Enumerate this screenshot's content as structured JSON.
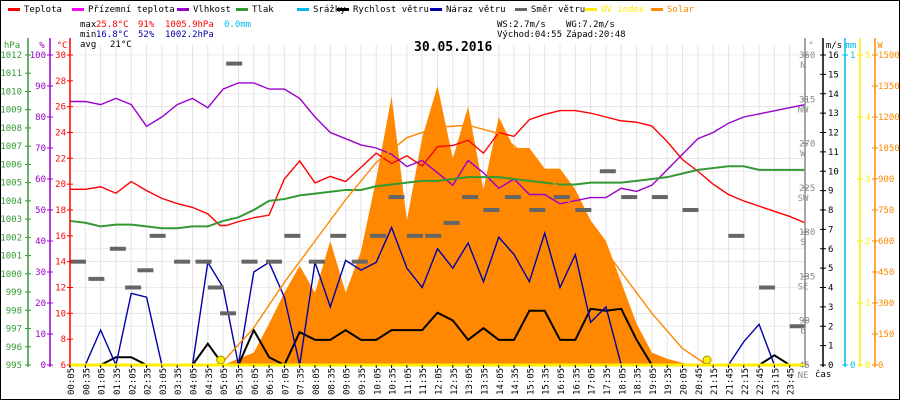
{
  "legend": [
    {
      "label": "Teplota",
      "color": "#ff0000"
    },
    {
      "label": "Přízemní teplota",
      "color": "#ff00ff"
    },
    {
      "label": "Vlhkost",
      "color": "#9900cc"
    },
    {
      "label": "Tlak",
      "color": "#339933"
    },
    {
      "label": "Srážky",
      "color": "#00bbee"
    },
    {
      "label": "Rychlost větru",
      "color": "#000000"
    },
    {
      "label": "Náraz větru",
      "color": "#0000aa"
    },
    {
      "label": "Směr větru",
      "color": "#666666"
    },
    {
      "label": "UV index",
      "color": "#ffee00"
    },
    {
      "label": "Solar",
      "color": "#ff8800"
    }
  ],
  "stats": {
    "max_label": "max",
    "min_label": "min",
    "avg_label": "avg",
    "max_temp": "25.8°C",
    "max_hum": "91%",
    "max_press": "1005.9hPa",
    "rain": "0.0mm",
    "min_temp": "16.8°C",
    "min_hum": "52%",
    "min_press": "1002.2hPa",
    "avg_temp": "21°C",
    "ws": "WS:2.7m/s",
    "wg": "WG:7.2m/s",
    "sunrise": "Východ:04:55",
    "sunset": "Západ:20:48"
  },
  "title": "30.05.2016",
  "time_axis_label": "čas",
  "chart_data": {
    "type": "line",
    "title": "30.05.2016",
    "xlabel": "čas",
    "x_ticks": [
      "00:05",
      "00:35",
      "01:05",
      "01:35",
      "02:05",
      "02:35",
      "03:05",
      "03:35",
      "04:05",
      "04:35",
      "05:05",
      "05:35",
      "06:05",
      "06:35",
      "07:05",
      "07:35",
      "08:05",
      "08:35",
      "09:05",
      "09:35",
      "10:05",
      "10:35",
      "11:05",
      "11:35",
      "12:05",
      "12:35",
      "13:05",
      "13:35",
      "14:05",
      "14:35",
      "15:05",
      "15:35",
      "16:05",
      "16:35",
      "17:05",
      "17:35",
      "18:05",
      "18:35",
      "19:05",
      "19:35",
      "20:05",
      "20:45",
      "21:15",
      "21:45",
      "22:15",
      "22:45",
      "23:15",
      "23:45"
    ],
    "axes": {
      "pressure": {
        "unit": "hPa",
        "range": [
          995,
          1012
        ],
        "ticks": [
          "1012",
          "1011",
          "1010",
          "1009",
          "1008",
          "1007",
          "1006",
          "1005",
          "1004",
          "1003",
          "1002",
          "1001",
          "1000",
          "999",
          "998",
          "997",
          "996",
          "995"
        ]
      },
      "humidity": {
        "unit": "%",
        "range": [
          0,
          100
        ],
        "ticks": [
          "100",
          "90",
          "80",
          "70",
          "60",
          "50",
          "40",
          "30",
          "20",
          "10",
          "0"
        ]
      },
      "temperature": {
        "unit": "°C",
        "range": [
          6,
          30
        ],
        "ticks": [
          "30",
          "28",
          "26",
          "24",
          "22",
          "20",
          "18",
          "16",
          "14",
          "12",
          "10",
          "8",
          "6"
        ]
      },
      "direction": {
        "unit": "°",
        "range": [
          0,
          360
        ],
        "ticks": [
          {
            "v": "360",
            "d": "N"
          },
          {
            "v": "315",
            "d": "NW"
          },
          {
            "v": "270",
            "d": "W"
          },
          {
            "v": "225",
            "d": "SW"
          },
          {
            "v": "180",
            "d": "S"
          },
          {
            "v": "135",
            "d": "SE"
          },
          {
            "v": "90",
            "d": "E"
          },
          {
            "v": "45",
            "d": "NE"
          }
        ]
      },
      "wind": {
        "unit": "m/s",
        "range": [
          0,
          16
        ],
        "ticks": [
          "16",
          "15",
          "14",
          "13",
          "12",
          "11",
          "10",
          "9",
          "8",
          "7",
          "6",
          "5",
          "4",
          "3",
          "2",
          "1",
          "0"
        ]
      },
      "rain": {
        "unit": "mm",
        "range": [
          0,
          1
        ],
        "ticks": [
          "1",
          "0"
        ]
      },
      "uv": {
        "unit": "",
        "range": [
          0,
          5
        ],
        "ticks": [
          "5",
          "4",
          "3",
          "2",
          "1",
          "0"
        ]
      },
      "solar": {
        "unit": "W",
        "range": [
          0,
          1500
        ],
        "ticks": [
          "1500",
          "1350",
          "1200",
          "1050",
          "900",
          "750",
          "600",
          "450",
          "300",
          "150",
          "0"
        ]
      }
    },
    "series": [
      {
        "name": "Teplota",
        "axis": "temperature",
        "color": "#ff0000",
        "x": [
          0,
          0.5,
          1,
          1.5,
          2,
          2.5,
          3,
          3.5,
          4,
          4.5,
          4.9,
          5.1,
          5.5,
          6,
          6.5,
          7,
          7.5,
          8,
          8.5,
          9,
          9.5,
          10,
          10.5,
          11,
          11.5,
          12,
          12.5,
          13,
          13.5,
          14,
          14.5,
          15,
          15.5,
          16,
          16.5,
          17,
          17.5,
          18,
          18.5,
          19,
          19.5,
          20,
          20.5,
          21,
          21.5,
          22,
          22.5,
          23,
          23.5,
          24
        ],
        "values": [
          19.6,
          19.6,
          19.8,
          19.3,
          20.2,
          19.5,
          18.9,
          18.5,
          18.2,
          17.7,
          16.8,
          16.8,
          17.1,
          17.4,
          17.6,
          20.4,
          21.8,
          20.1,
          20.6,
          20.2,
          21.3,
          22.4,
          21.6,
          22.2,
          21.4,
          22.9,
          23.0,
          23.4,
          22.4,
          24.0,
          23.7,
          25.0,
          25.4,
          25.7,
          25.7,
          25.5,
          25.2,
          24.9,
          24.8,
          24.5,
          23.3,
          21.9,
          21.0,
          20.0,
          19.2,
          18.7,
          18.3,
          17.9,
          17.5,
          17.0
        ]
      },
      {
        "name": "Vlhkost",
        "axis": "humidity",
        "color": "#9900cc",
        "x": [
          0,
          0.5,
          1,
          1.5,
          2,
          2.5,
          3,
          3.5,
          4,
          4.5,
          5,
          5.5,
          6,
          6.5,
          7,
          7.5,
          8,
          8.5,
          9,
          9.5,
          10,
          10.5,
          11,
          11.5,
          12,
          12.5,
          13,
          13.5,
          14,
          14.5,
          15,
          15.5,
          16,
          16.5,
          17,
          17.5,
          18,
          18.5,
          19,
          19.5,
          20,
          20.5,
          21,
          21.5,
          22,
          22.5,
          23,
          23.5,
          24
        ],
        "values": [
          85,
          85,
          84,
          86,
          84,
          77,
          80,
          84,
          86,
          83,
          89,
          91,
          91,
          89,
          89,
          86,
          80,
          75,
          73,
          71,
          70,
          68,
          64,
          66,
          62,
          58,
          66,
          62,
          57,
          60,
          55,
          55,
          52,
          53,
          54,
          54,
          57,
          56,
          58,
          63,
          68,
          73,
          75,
          78,
          80,
          81,
          82,
          83,
          84
        ]
      },
      {
        "name": "Tlak",
        "axis": "pressure",
        "color": "#339933",
        "x": [
          0,
          0.5,
          1,
          1.5,
          2,
          2.5,
          3,
          3.5,
          4,
          4.5,
          5,
          5.5,
          6,
          6.5,
          7,
          7.5,
          8,
          8.5,
          9,
          9.5,
          10,
          10.5,
          11,
          11.5,
          12,
          12.5,
          13,
          13.5,
          14,
          14.5,
          15,
          15.5,
          16,
          16.5,
          17,
          17.5,
          18,
          18.5,
          19,
          19.5,
          20,
          20.5,
          21,
          21.5,
          22,
          22.5,
          23,
          23.5,
          24
        ],
        "values": [
          1002.9,
          1002.8,
          1002.6,
          1002.7,
          1002.7,
          1002.6,
          1002.5,
          1002.5,
          1002.6,
          1002.6,
          1002.9,
          1003.1,
          1003.5,
          1004.0,
          1004.1,
          1004.3,
          1004.4,
          1004.5,
          1004.6,
          1004.6,
          1004.8,
          1004.9,
          1005.0,
          1005.1,
          1005.1,
          1005.2,
          1005.3,
          1005.3,
          1005.3,
          1005.2,
          1005.1,
          1005.0,
          1004.9,
          1004.9,
          1005.0,
          1005.0,
          1005.0,
          1005.1,
          1005.2,
          1005.3,
          1005.5,
          1005.7,
          1005.8,
          1005.9,
          1005.9,
          1005.7,
          1005.7,
          1005.7,
          1005.7
        ]
      },
      {
        "name": "Rychlost větru",
        "axis": "wind",
        "color": "#000000",
        "x": [
          0,
          0.5,
          1,
          1.5,
          2,
          2.5,
          3,
          3.5,
          4,
          4.5,
          5,
          5.5,
          6,
          6.5,
          7,
          7.5,
          8,
          8.5,
          9,
          9.5,
          10,
          10.5,
          11,
          11.5,
          12,
          12.5,
          13,
          13.5,
          14,
          14.5,
          15,
          15.5,
          16,
          16.5,
          17,
          17.5,
          18,
          18.5,
          19,
          19.5,
          20,
          20.5,
          21,
          21.5,
          22,
          22.5,
          23,
          23.5,
          24
        ],
        "values": [
          0,
          0,
          0,
          0.4,
          0.4,
          0,
          0,
          0,
          0,
          1.1,
          0,
          0,
          1.8,
          0.4,
          0,
          1.7,
          1.3,
          1.3,
          1.8,
          1.3,
          1.3,
          1.8,
          1.8,
          1.8,
          2.7,
          2.3,
          1.3,
          1.9,
          1.3,
          1.3,
          2.8,
          2.8,
          1.3,
          1.3,
          2.9,
          2.8,
          2.9,
          1.3,
          0,
          0,
          0,
          0,
          0,
          0,
          0,
          0,
          0.5,
          0,
          0
        ]
      },
      {
        "name": "Náraz větru",
        "axis": "wind",
        "color": "#0000aa",
        "x": [
          0,
          0.5,
          1,
          1.5,
          2,
          2.5,
          3,
          3.5,
          4,
          4.5,
          5,
          5.5,
          6,
          6.5,
          7,
          7.5,
          8,
          8.5,
          9,
          9.5,
          10,
          10.5,
          11,
          11.5,
          12,
          12.5,
          13,
          13.5,
          14,
          14.5,
          15,
          15.5,
          16,
          16.5,
          17,
          17.5,
          18,
          18.5,
          19,
          19.5,
          20,
          20.5,
          21,
          21.5,
          22,
          22.5,
          23,
          23.5,
          24
        ],
        "values": [
          0,
          0,
          1.8,
          0,
          3.7,
          3.5,
          0,
          0,
          0,
          5.3,
          4.0,
          0,
          4.8,
          5.3,
          3.5,
          0,
          5.3,
          3.0,
          5.4,
          4.9,
          5.3,
          7.1,
          5.0,
          4.0,
          6.0,
          5.0,
          6.3,
          4.3,
          6.6,
          5.7,
          4.3,
          6.8,
          4.0,
          5.7,
          2.2,
          3.0,
          0,
          0,
          0,
          0,
          0,
          0,
          0,
          0,
          1.2,
          2.1,
          0,
          0,
          0
        ]
      },
      {
        "name": "Solar",
        "axis": "solar",
        "color": "#ff8800",
        "type": "area",
        "x": [
          5,
          5.5,
          6,
          6.5,
          7,
          7.5,
          8,
          8.5,
          9,
          9.5,
          10,
          10.5,
          11,
          11.5,
          12,
          12.5,
          13,
          13.5,
          14,
          14.5,
          15,
          15.5,
          16,
          16.5,
          17,
          17.5,
          18,
          18.5,
          19,
          19.5,
          20,
          20.5,
          21
        ],
        "values": [
          0,
          30,
          60,
          200,
          350,
          480,
          350,
          600,
          350,
          550,
          900,
          1300,
          700,
          1100,
          1350,
          1000,
          1250,
          850,
          1200,
          1050,
          1050,
          950,
          950,
          850,
          700,
          600,
          400,
          200,
          60,
          30,
          10,
          0,
          0
        ]
      },
      {
        "name": "Solar max",
        "axis": "solar",
        "color": "#ff8800",
        "x": [
          4.9,
          6,
          7,
          8,
          9,
          10,
          11,
          12,
          13,
          14,
          15,
          16,
          17,
          18,
          19,
          20,
          20.8
        ],
        "values": [
          0,
          180,
          400,
          600,
          800,
          980,
          1100,
          1150,
          1160,
          1120,
          1000,
          850,
          650,
          450,
          250,
          80,
          0
        ]
      },
      {
        "name": "Směr větru",
        "axis": "direction",
        "color": "#666666",
        "type": "segments",
        "x": [
          0,
          0.6,
          1.3,
          1.8,
          2.2,
          2.6,
          3.4,
          4.1,
          4.5,
          4.9,
          5.1,
          5.6,
          6.4,
          7.0,
          7.8,
          8.5,
          9.2,
          9.8,
          10.4,
          11.0,
          11.6,
          12.2,
          12.8,
          13.5,
          14.2,
          15.0,
          15.8,
          16.5,
          17.3,
          18.0,
          19.0,
          20.0,
          21.5,
          22.5,
          23.5
        ],
        "values": [
          120,
          100,
          135,
          90,
          110,
          150,
          120,
          120,
          90,
          60,
          350,
          120,
          120,
          150,
          120,
          150,
          120,
          150,
          195,
          150,
          150,
          165,
          195,
          180,
          195,
          180,
          195,
          180,
          225,
          195,
          195,
          180,
          150,
          90,
          45
        ]
      },
      {
        "name": "UV index",
        "axis": "uv",
        "color": "#ffee00",
        "x": [
          0,
          24
        ],
        "values": [
          0,
          0
        ],
        "markers": [
          {
            "x": 4.92,
            "v": 0
          },
          {
            "x": 20.8,
            "v": 0
          }
        ]
      }
    ]
  }
}
